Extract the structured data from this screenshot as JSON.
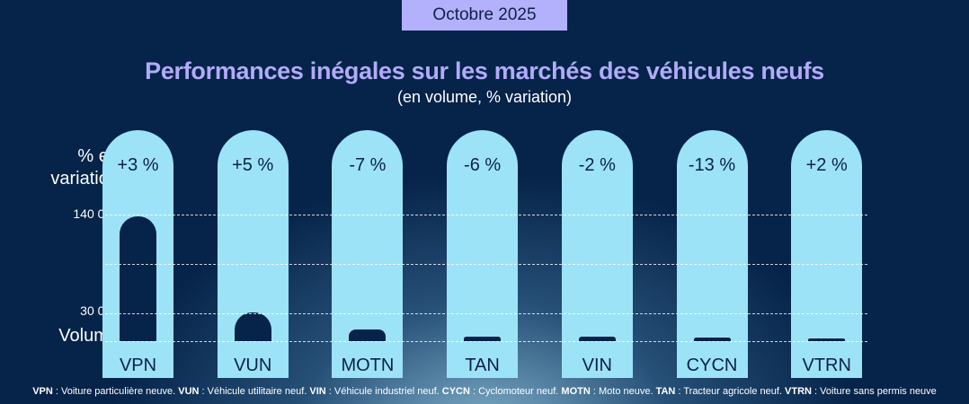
{
  "badge": "Octobre 2025",
  "chart_data": {
    "type": "bar",
    "title": "Performances inégales sur les marchés des véhicules neufs",
    "subtitle": "(en volume, % variation)",
    "top_label": "% en variation",
    "top_label_lines": [
      "% en",
      "variation"
    ],
    "ylabel": "Volume",
    "yticks": [
      "140 000",
      "30 000"
    ],
    "ytick_values": [
      140000,
      30000
    ],
    "ylim": [
      0,
      140000
    ],
    "grid": true,
    "categories": [
      "VPN",
      "VUN",
      "MOTN",
      "TAN",
      "VIN",
      "CYCN",
      "VTRN"
    ],
    "variations": [
      "+3 %",
      "+5 %",
      "-7 %",
      "-6 %",
      "-2 %",
      "-13 %",
      "+2 %"
    ],
    "values": [
      138000,
      32000,
      13000,
      4500,
      5000,
      4000,
      3000
    ]
  },
  "colors": {
    "background": "#062349",
    "column": "#9de3f7",
    "bar": "#062349",
    "title": "#b0acf8",
    "badge": "#b3b1fb"
  },
  "footnote": [
    {
      "abbr": "VPN",
      "text": " : Voiture particulière neuve. "
    },
    {
      "abbr": "VUN",
      "text": " : Véhicule utilitaire neuf. "
    },
    {
      "abbr": "VIN",
      "text": " : Véhicule industriel neuf. "
    },
    {
      "abbr": "CYCN",
      "text": " : Cyclomoteur neuf. "
    },
    {
      "abbr": "MOTN",
      "text": " : Moto neuve. "
    },
    {
      "abbr": "TAN",
      "text": " : Tracteur agricole neuf. "
    },
    {
      "abbr": "VTRN",
      "text": " : Voiture sans permis neuve"
    }
  ]
}
